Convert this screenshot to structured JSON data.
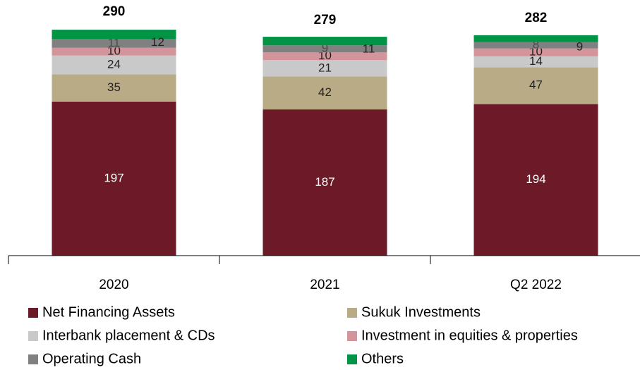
{
  "chart_data": {
    "type": "stacked_bar",
    "categories": [
      "2020",
      "2021",
      "Q2 2022"
    ],
    "totals": [
      290,
      279,
      282
    ],
    "series": [
      {
        "name": "Net Financing Assets",
        "color": "#6d1a28",
        "values": [
          197,
          187,
          194
        ]
      },
      {
        "name": "Sukuk Investments",
        "color": "#b9ab85",
        "values": [
          35,
          42,
          47
        ]
      },
      {
        "name": "Interbank placement & CDs",
        "color": "#c9c9c9",
        "values": [
          24,
          21,
          14
        ]
      },
      {
        "name": "Investment in equities & properties",
        "color": "#d3949b",
        "values": [
          10,
          10,
          10
        ]
      },
      {
        "name": "Operating Cash",
        "color": "#808080",
        "values": [
          11,
          9,
          8
        ]
      },
      {
        "name": "Others",
        "color": "#009444",
        "values": [
          12,
          11,
          9
        ]
      }
    ],
    "legend": "bottom"
  }
}
